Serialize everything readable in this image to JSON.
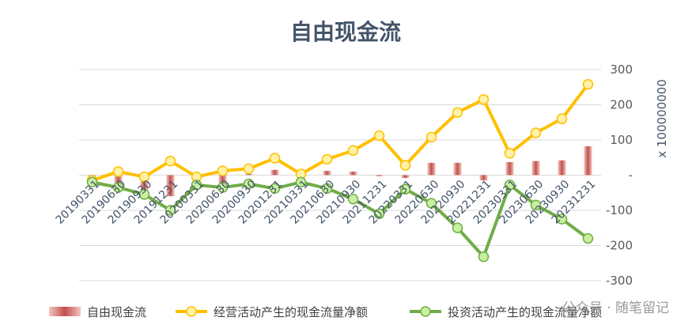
{
  "chart_data": {
    "type": "bar+line",
    "title": "自由现金流",
    "y_unit_label": "x 100000000",
    "ylim": [
      -300,
      300
    ],
    "y_ticks": [
      300,
      200,
      100,
      0,
      -100,
      -200,
      -300
    ],
    "y_tick_labels": [
      "300",
      "200",
      "100",
      "-",
      "-100",
      "-200",
      "-300"
    ],
    "categories": [
      "20190331",
      "20190630",
      "20190930",
      "20191231",
      "20200331",
      "20200630",
      "20200930",
      "20201231",
      "20210331",
      "20210630",
      "20210930",
      "20211231",
      "20220331",
      "20220630",
      "20220930",
      "20221231",
      "20230331",
      "20230630",
      "20230930",
      "20231231"
    ],
    "series": [
      {
        "name": "自由现金流",
        "kind": "bar",
        "color": "#c0504d",
        "values": [
          -10,
          -25,
          -45,
          -60,
          -5,
          -25,
          3,
          15,
          4,
          12,
          10,
          -3,
          -8,
          35,
          35,
          -15,
          37,
          40,
          42,
          82
        ]
      },
      {
        "name": "经营活动产生的现金流量净额",
        "kind": "line",
        "color": "#ffc000",
        "values": [
          -15,
          10,
          -5,
          40,
          -5,
          12,
          18,
          48,
          3,
          45,
          70,
          112,
          28,
          108,
          178,
          215,
          62,
          120,
          160,
          258
        ]
      },
      {
        "name": "投资活动产生的现金流量净额",
        "kind": "line",
        "color": "#70ad47",
        "values": [
          -20,
          -35,
          -55,
          -100,
          -28,
          -35,
          -25,
          -38,
          -20,
          -38,
          -68,
          -110,
          -40,
          -80,
          -150,
          -232,
          -28,
          -85,
          -125,
          -180
        ]
      }
    ],
    "grid": "horizontal",
    "legend_position": "bottom"
  },
  "watermark": "公众号 · 随笔留记"
}
